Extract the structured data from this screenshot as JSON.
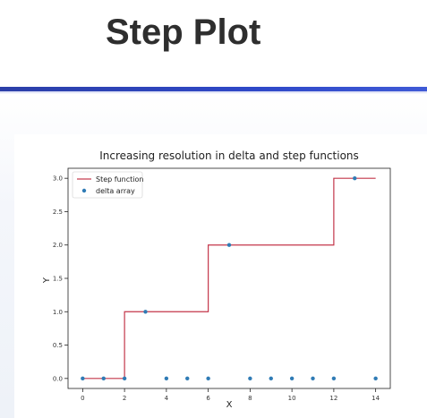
{
  "slide": {
    "title": "Step Plot"
  },
  "colors": {
    "step_line": "#c4364a",
    "delta_points": "#2f7bb5",
    "rule": "#2e48c8"
  },
  "chart_data": {
    "type": "line",
    "title": "Increasing resolution in delta and step functions",
    "xlabel": "X",
    "ylabel": "Y",
    "xlim": [
      -0.7,
      14.7
    ],
    "ylim": [
      -0.15,
      3.15
    ],
    "xticks": [
      0,
      2,
      4,
      6,
      8,
      10,
      12,
      14
    ],
    "yticks": [
      0.0,
      0.5,
      1.0,
      1.5,
      2.0,
      2.5,
      3.0
    ],
    "ytick_labels": [
      "0.0",
      "0.5",
      "1.0",
      "1.5",
      "2.0",
      "2.5",
      "3.0"
    ],
    "grid": false,
    "legend_position": "top-left",
    "series": [
      {
        "name": "Step function",
        "kind": "step",
        "x": [
          0,
          2,
          2,
          6,
          6,
          12,
          12,
          14
        ],
        "y": [
          0,
          0,
          1,
          1,
          2,
          2,
          3,
          3
        ]
      },
      {
        "name": "delta array",
        "kind": "scatter",
        "x": [
          0,
          1,
          2,
          3,
          4,
          5,
          6,
          7,
          8,
          9,
          10,
          11,
          12,
          13,
          14
        ],
        "y": [
          0,
          0,
          0,
          1,
          0,
          0,
          0,
          2,
          0,
          0,
          0,
          0,
          0,
          3,
          0
        ]
      }
    ]
  }
}
